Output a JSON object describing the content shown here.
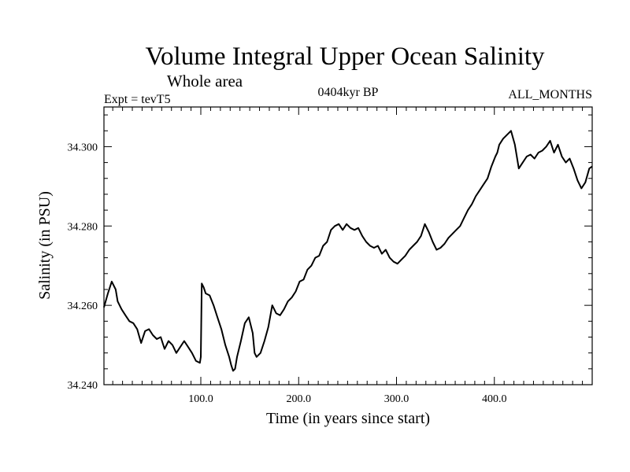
{
  "chart_data": {
    "type": "line",
    "title": "Volume Integral Upper Ocean Salinity",
    "subtitle": "Whole area",
    "header_left": "Expt = tevT5",
    "header_center": "0404kyr BP",
    "header_right": "ALL_MONTHS",
    "xlabel": "Time (in years since start)",
    "ylabel": "Salinity (in PSU)",
    "xlim": [
      1,
      500
    ],
    "ylim": [
      34.24,
      34.31
    ],
    "x_ticks": [
      100,
      200,
      300,
      400
    ],
    "x_tick_labels": [
      "100.0",
      "200.0",
      "300.0",
      "400.0"
    ],
    "y_ticks": [
      34.24,
      34.26,
      34.28,
      34.3
    ],
    "y_tick_labels": [
      "34.240",
      "34.260",
      "34.280",
      "34.300"
    ],
    "grid": false,
    "line_color": "#000000",
    "series": [
      {
        "x": [
          1,
          5,
          9,
          13,
          15,
          19,
          23,
          27,
          31,
          35,
          39,
          43,
          47,
          51,
          55,
          59,
          63,
          67,
          71,
          75,
          79,
          83,
          87,
          91,
          95,
          99,
          100,
          101,
          103,
          105,
          109,
          113,
          117,
          121,
          125,
          129,
          131,
          133,
          135,
          137,
          141,
          145,
          149,
          153,
          155,
          157,
          161,
          165,
          169,
          173,
          177,
          181,
          185,
          189,
          193,
          197,
          201,
          205,
          209,
          213,
          217,
          221,
          225,
          229,
          233,
          237,
          241,
          245,
          249,
          253,
          257,
          261,
          265,
          269,
          273,
          277,
          281,
          285,
          289,
          293,
          297,
          301,
          305,
          309,
          313,
          317,
          321,
          325,
          329,
          333,
          337,
          341,
          345,
          349,
          353,
          357,
          361,
          365,
          369,
          373,
          377,
          381,
          385,
          389,
          393,
          397,
          401,
          403,
          405,
          409,
          413,
          417,
          421,
          425,
          429,
          433,
          437,
          441,
          445,
          449,
          453,
          457,
          461,
          465,
          469,
          473,
          477,
          481,
          485,
          489,
          493,
          497,
          500
        ],
        "y": [
          34.2595,
          34.263,
          34.266,
          34.264,
          34.261,
          34.259,
          34.2575,
          34.256,
          34.2555,
          34.254,
          34.2505,
          34.2535,
          34.254,
          34.2525,
          34.2515,
          34.252,
          34.249,
          34.251,
          34.25,
          34.248,
          34.2495,
          34.251,
          34.2495,
          34.248,
          34.246,
          34.2455,
          34.247,
          34.2655,
          34.2645,
          34.263,
          34.2625,
          34.26,
          34.257,
          34.254,
          34.25,
          34.247,
          34.245,
          34.2435,
          34.244,
          34.247,
          34.251,
          34.2555,
          34.257,
          34.253,
          34.248,
          34.247,
          34.248,
          34.251,
          34.2545,
          34.26,
          34.258,
          34.2575,
          34.259,
          34.261,
          34.262,
          34.2635,
          34.266,
          34.2665,
          34.269,
          34.27,
          34.272,
          34.2725,
          34.275,
          34.276,
          34.279,
          34.28,
          34.2805,
          34.279,
          34.2805,
          34.2795,
          34.279,
          34.2795,
          34.2775,
          34.276,
          34.275,
          34.2745,
          34.275,
          34.273,
          34.274,
          34.272,
          34.271,
          34.2705,
          34.2715,
          34.2725,
          34.274,
          34.275,
          34.276,
          34.2775,
          34.2805,
          34.2785,
          34.276,
          34.274,
          34.2745,
          34.2755,
          34.277,
          34.278,
          34.279,
          34.28,
          34.282,
          34.284,
          34.2855,
          34.2875,
          34.289,
          34.2905,
          34.292,
          34.295,
          34.2975,
          34.2985,
          34.3005,
          34.302,
          34.303,
          34.304,
          34.3005,
          34.2945,
          34.296,
          34.2975,
          34.298,
          34.297,
          34.2985,
          34.299,
          34.3,
          34.3015,
          34.2985,
          34.3005,
          34.2975,
          34.296,
          34.297,
          34.2945,
          34.2915,
          34.2895,
          34.291,
          34.2945,
          34.295
        ]
      }
    ]
  }
}
